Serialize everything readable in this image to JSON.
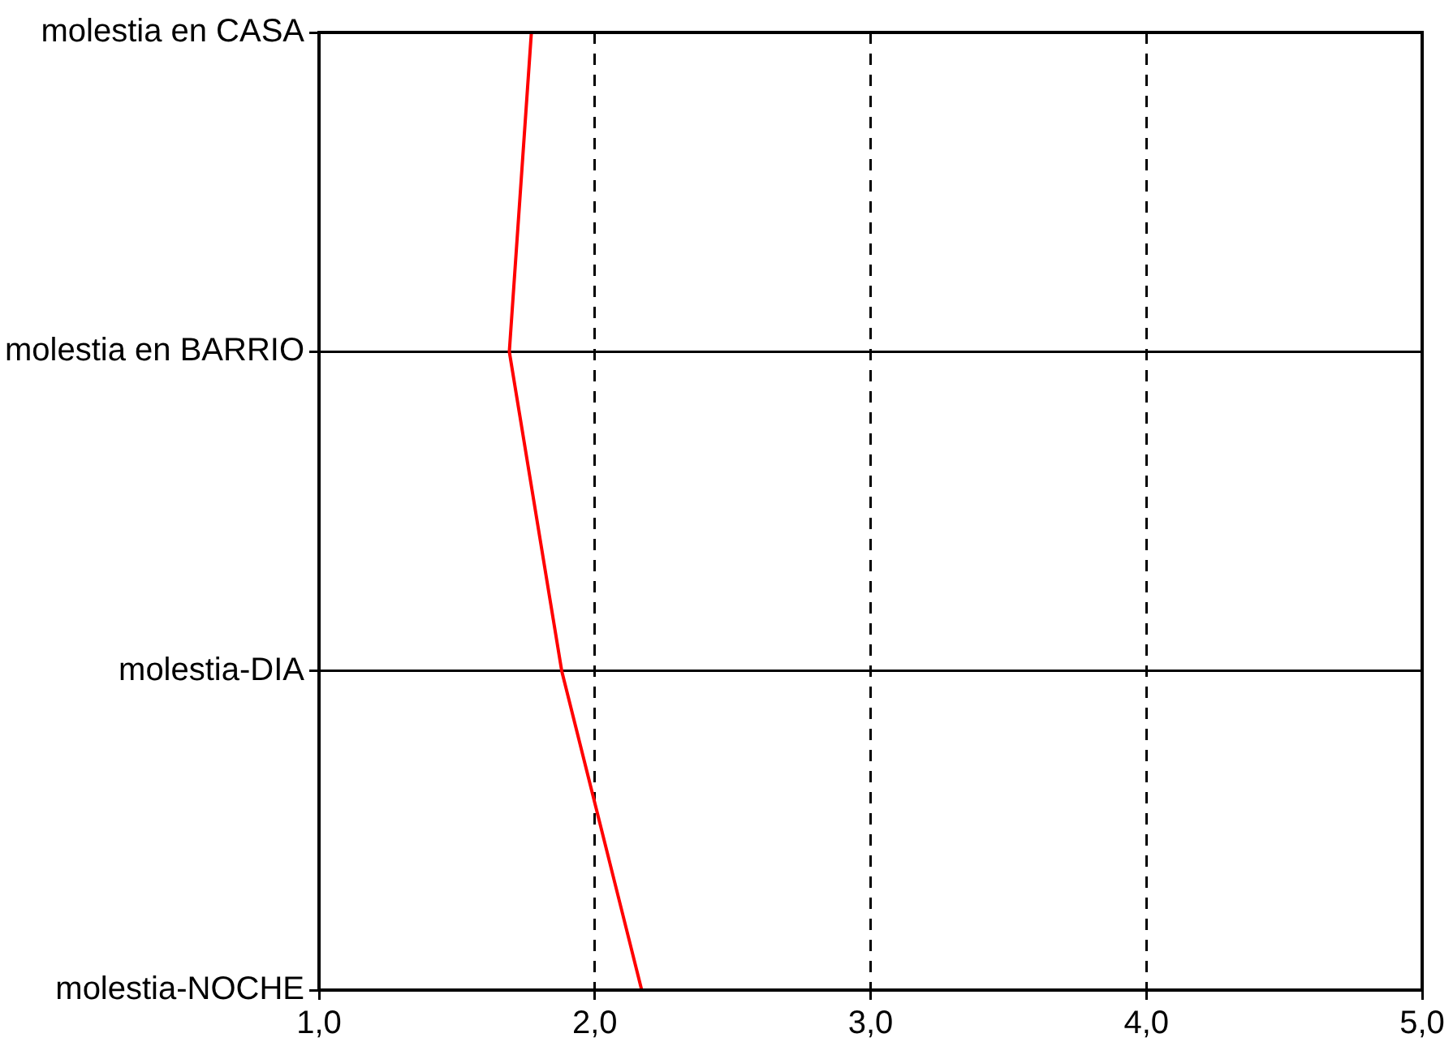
{
  "chart_data": {
    "type": "line",
    "orientation": "horizontal",
    "categories": [
      "molestia en CASA",
      "molestia en BARRIO",
      "molestia-DIA",
      "molestia-NOCHE"
    ],
    "series": [
      {
        "color": "#ff0000",
        "values": [
          1.77,
          1.69,
          1.88,
          2.17
        ]
      }
    ],
    "xlim": [
      1,
      5
    ],
    "xticks": [
      {
        "value": 1,
        "label": "1,0"
      },
      {
        "value": 2,
        "label": "2,0"
      },
      {
        "value": 3,
        "label": "3,0"
      },
      {
        "value": 4,
        "label": "4,0"
      },
      {
        "value": 5,
        "label": "5,0"
      }
    ],
    "grid": true,
    "legend": false,
    "marker": "none",
    "line_style": "solid"
  }
}
